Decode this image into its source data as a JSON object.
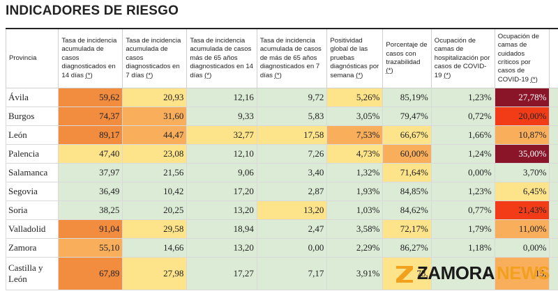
{
  "title": "INDICADORES DE RIESGO",
  "ref_mark": "(*)",
  "headers": [
    "Provincia",
    "Tasa de incidencia acumulada de casos diagnosticados en 14 días",
    "Tasa de incidencia acumulada de casos diagnosticados en 7 días",
    "Tasa de incidencia acumulada de casos más de 65 años diagnosticados en 14 días",
    "Tasa de incidencia acumulada de casos de más de 65 años diagnosticados en 7 días",
    "Positividad global de las pruebas diagnósticas por semana",
    "Porcentaje de casos con trazabilidad",
    "Ocupación de camas de hospitalización por casos de COVID-19",
    "Ocupación de camas de cuidados críticos por casos de COVID-19"
  ],
  "rows": [
    {
      "provincia": "Ávila",
      "values": [
        "59,62",
        "20,93",
        "12,16",
        "9,72",
        "5,26%",
        "85,19%",
        "1,23%",
        "27,78%"
      ],
      "levels": [
        "dor",
        "yl",
        "lg",
        "lg",
        "yl",
        "lg",
        "lg",
        "dr"
      ]
    },
    {
      "provincia": "Burgos",
      "values": [
        "74,37",
        "31,60",
        "9,33",
        "5,83",
        "3,05%",
        "79,47%",
        "0,72%",
        "20,00%"
      ],
      "levels": [
        "dor",
        "or",
        "lg",
        "lg",
        "lg",
        "lg",
        "lg",
        "rd"
      ]
    },
    {
      "provincia": "León",
      "values": [
        "89,17",
        "44,47",
        "32,77",
        "17,58",
        "7,53%",
        "66,67%",
        "1,66%",
        "10,87%"
      ],
      "levels": [
        "dor",
        "or",
        "yl",
        "yl",
        "or",
        "yl",
        "lg",
        "or"
      ]
    },
    {
      "provincia": "Palencia",
      "values": [
        "47,40",
        "23,08",
        "12,10",
        "7,26",
        "4,73%",
        "60,00%",
        "1,24%",
        "35,00%"
      ],
      "levels": [
        "yl",
        "yl",
        "lg",
        "lg",
        "yl",
        "or",
        "lg",
        "dr"
      ]
    },
    {
      "provincia": "Salamanca",
      "values": [
        "37,97",
        "21,56",
        "9,06",
        "3,40",
        "1,32%",
        "71,64%",
        "0,00%",
        "3,70%"
      ],
      "levels": [
        "lg",
        "lg",
        "lg",
        "lg",
        "lg",
        "yl",
        "lg",
        "lg"
      ]
    },
    {
      "provincia": "Segovia",
      "values": [
        "36,49",
        "10,42",
        "17,20",
        "2,87",
        "1,93%",
        "84,85%",
        "1,23%",
        "6,45%"
      ],
      "levels": [
        "lg",
        "lg",
        "lg",
        "lg",
        "lg",
        "lg",
        "lg",
        "yl"
      ]
    },
    {
      "provincia": "Soria",
      "values": [
        "38,25",
        "20,25",
        "13,20",
        "13,20",
        "1,03%",
        "84,62%",
        "0,77%",
        "21,43%"
      ],
      "levels": [
        "lg",
        "lg",
        "lg",
        "yl",
        "lg",
        "lg",
        "lg",
        "rd"
      ]
    },
    {
      "provincia": "Valladolid",
      "values": [
        "91,04",
        "29,58",
        "18,94",
        "2,47",
        "3,58%",
        "72,17%",
        "1,79%",
        "11,00%"
      ],
      "levels": [
        "dor",
        "yl",
        "lg",
        "lg",
        "lg",
        "yl",
        "lg",
        "or"
      ]
    },
    {
      "provincia": "Zamora",
      "values": [
        "55,10",
        "14,66",
        "13,20",
        "0,00",
        "2,29%",
        "86,27%",
        "1,18%",
        "0,00%"
      ],
      "levels": [
        "or",
        "lg",
        "lg",
        "lg",
        "lg",
        "lg",
        "lg",
        "lg"
      ]
    },
    {
      "provincia": "Castilla y León",
      "values": [
        "67,89",
        "27,98",
        "17,27",
        "7,17",
        "3,91%",
        "73,",
        "1,",
        "15,"
      ],
      "levels": [
        "dor",
        "yl",
        "lg",
        "lg",
        "lg",
        "yl",
        "lg",
        "or"
      ]
    }
  ],
  "watermark": {
    "part1": "ZAMORA",
    "part2": "NEWS"
  }
}
